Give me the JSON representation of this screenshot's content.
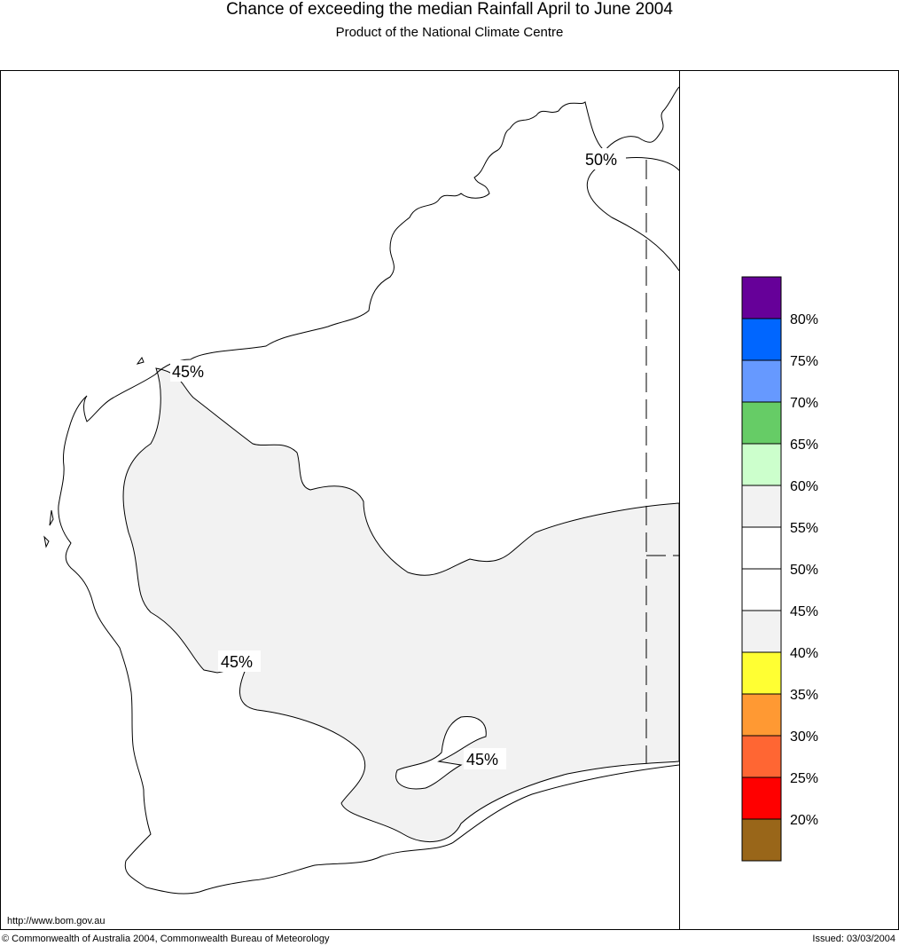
{
  "header": {
    "title": "Chance of exceeding the median Rainfall April to June 2004",
    "subtitle": "Product of the National Climate Centre"
  },
  "map": {
    "contour_labels": {
      "north": "50%",
      "west_coast": "45%",
      "central": "45%",
      "south": "45%"
    },
    "region_colors": {
      "band_40_45": "#f2f2f2",
      "band_45_50": "#ffffff"
    }
  },
  "legend": {
    "bands": [
      {
        "color": "#660099"
      },
      {
        "color": "#0066ff"
      },
      {
        "color": "#6699ff"
      },
      {
        "color": "#66cc66"
      },
      {
        "color": "#ccffcc"
      },
      {
        "color": "#f2f2f2"
      },
      {
        "color": "#ffffff"
      },
      {
        "color": "#ffffff"
      },
      {
        "color": "#f2f2f2"
      },
      {
        "color": "#ffff33"
      },
      {
        "color": "#ff9933"
      },
      {
        "color": "#ff6633"
      },
      {
        "color": "#ff0000"
      },
      {
        "color": "#996619"
      }
    ],
    "labels": [
      "80%",
      "75%",
      "70%",
      "65%",
      "60%",
      "55%",
      "50%",
      "45%",
      "40%",
      "35%",
      "30%",
      "25%",
      "20%"
    ]
  },
  "footer": {
    "url": "http://www.bom.gov.au",
    "copyright": "© Commonwealth of Australia 2004, Commonwealth Bureau of Meteorology",
    "issued": "Issued: 03/03/2004"
  }
}
